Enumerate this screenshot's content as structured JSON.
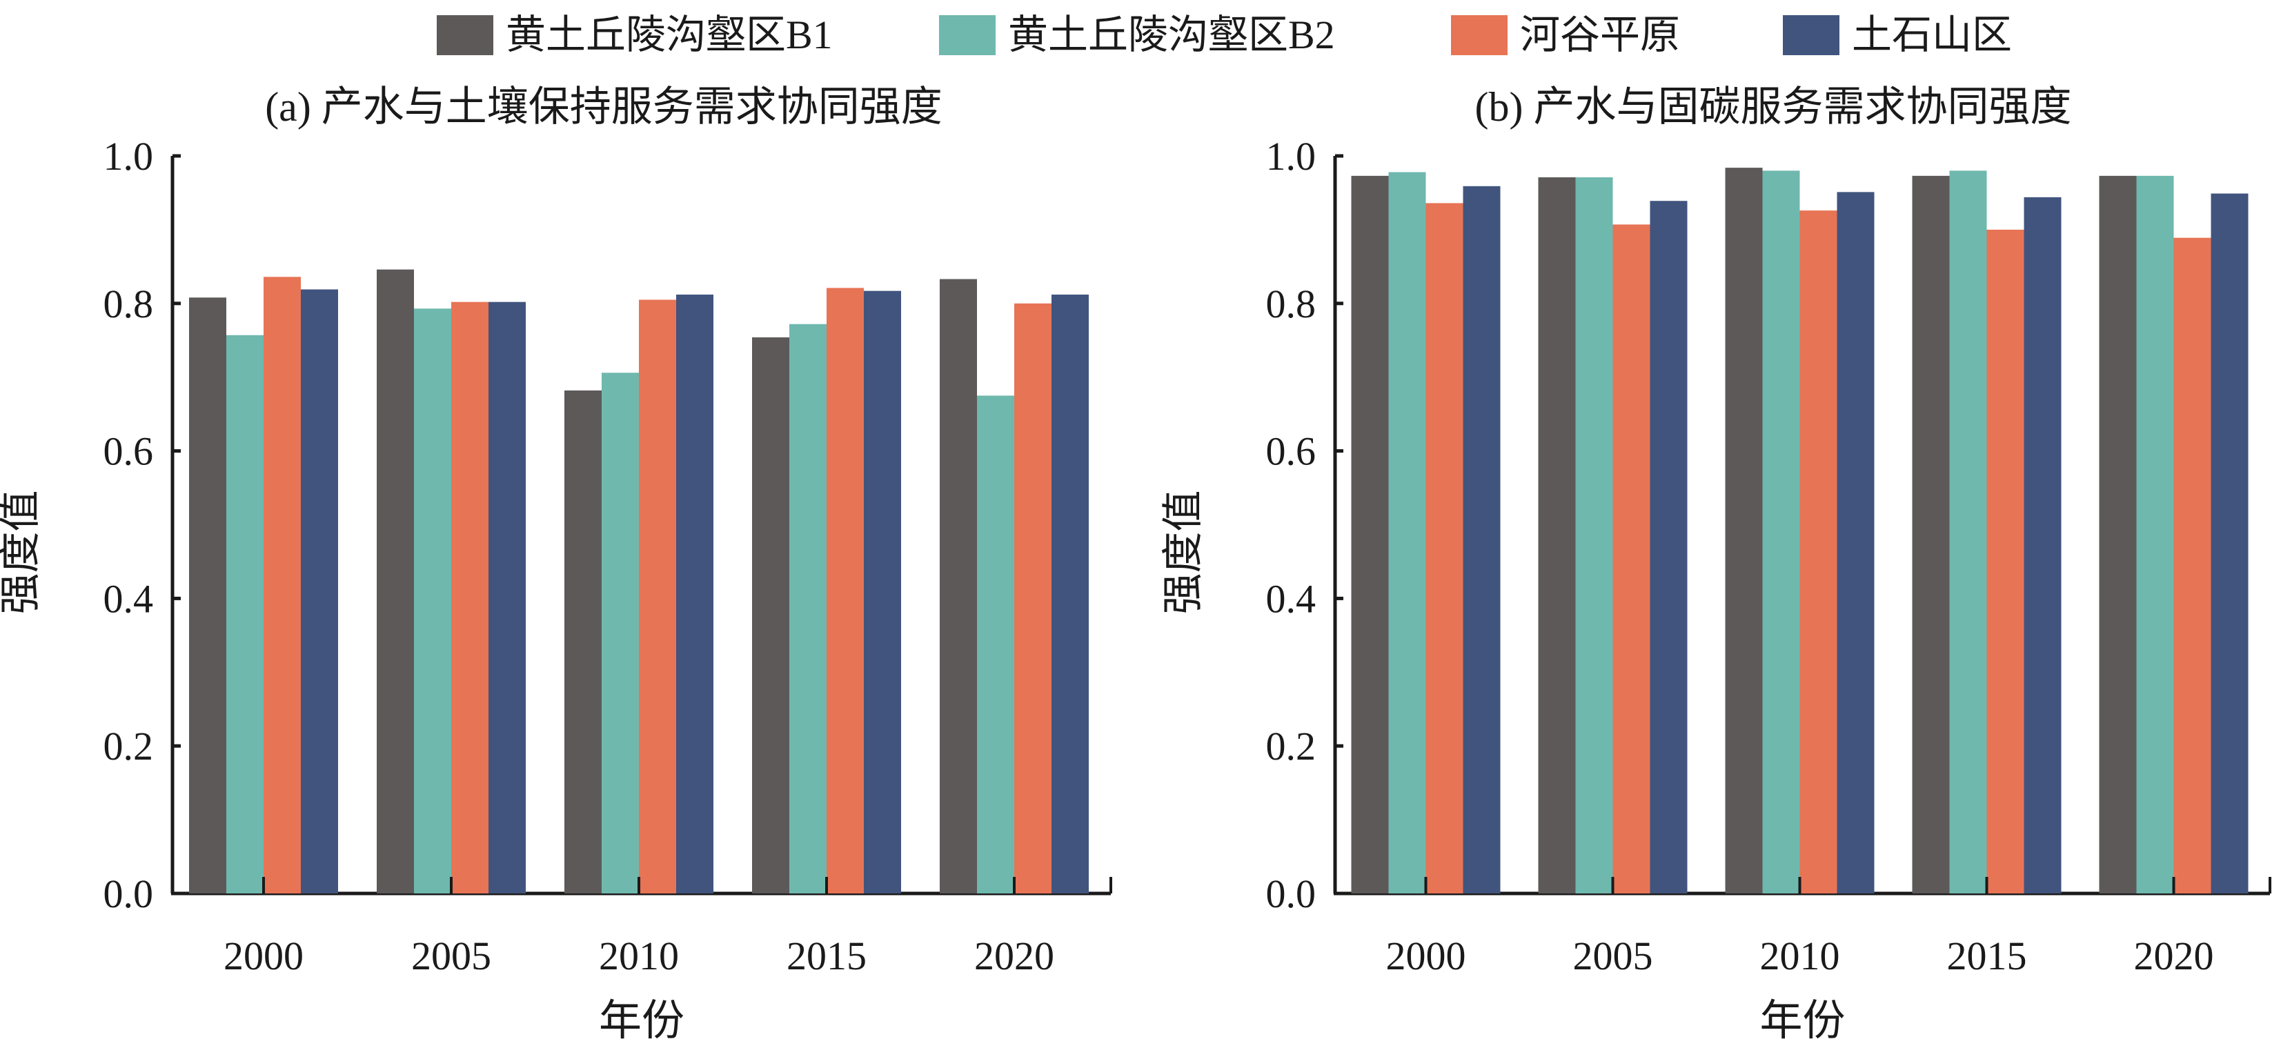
{
  "legend": [
    {
      "label": "黄土丘陵沟壑区B1",
      "color": "#5d5959"
    },
    {
      "label": "黄土丘陵沟壑区B2",
      "color": "#6fb8ae"
    },
    {
      "label": "河谷平原",
      "color": "#e77455"
    },
    {
      "label": "土石山区",
      "color": "#40547e"
    }
  ],
  "chart_data": [
    {
      "type": "bar",
      "title": "(a) 产水与土壤保持服务需求协同强度",
      "xlabel": "年份",
      "ylabel": "强度值",
      "categories": [
        "2000",
        "2005",
        "2010",
        "2015",
        "2020"
      ],
      "ylim": [
        0,
        1.0
      ],
      "yticks": [
        "0.0",
        "0.2",
        "0.4",
        "0.6",
        "0.8",
        "1.0"
      ],
      "grid": false,
      "legend_position": "top-center",
      "series": [
        {
          "name": "黄土丘陵沟壑区B1",
          "color": "#5d5959",
          "values": [
            0.808,
            0.846,
            0.682,
            0.754,
            0.833
          ]
        },
        {
          "name": "黄土丘陵沟壑区B2",
          "color": "#6fb8ae",
          "values": [
            0.757,
            0.793,
            0.706,
            0.772,
            0.675
          ]
        },
        {
          "name": "河谷平原",
          "color": "#e77455",
          "values": [
            0.836,
            0.802,
            0.805,
            0.821,
            0.8
          ]
        },
        {
          "name": "土石山区",
          "color": "#40547e",
          "values": [
            0.819,
            0.802,
            0.812,
            0.817,
            0.812
          ]
        }
      ]
    },
    {
      "type": "bar",
      "title": "(b) 产水与固碳服务需求协同强度",
      "xlabel": "年份",
      "ylabel": "强度值",
      "categories": [
        "2000",
        "2005",
        "2010",
        "2015",
        "2020"
      ],
      "ylim": [
        0,
        1.0
      ],
      "yticks": [
        "0.0",
        "0.2",
        "0.4",
        "0.6",
        "0.8",
        "1.0"
      ],
      "grid": false,
      "legend_position": "top-center",
      "series": [
        {
          "name": "黄土丘陵沟壑区B1",
          "color": "#5d5959",
          "values": [
            0.973,
            0.971,
            0.984,
            0.973,
            0.973
          ]
        },
        {
          "name": "黄土丘陵沟壑区B2",
          "color": "#6fb8ae",
          "values": [
            0.978,
            0.971,
            0.98,
            0.98,
            0.973
          ]
        },
        {
          "name": "河谷平原",
          "color": "#e77455",
          "values": [
            0.936,
            0.907,
            0.926,
            0.9,
            0.889
          ]
        },
        {
          "name": "土石山区",
          "color": "#40547e",
          "values": [
            0.959,
            0.939,
            0.951,
            0.944,
            0.949
          ]
        }
      ]
    }
  ]
}
